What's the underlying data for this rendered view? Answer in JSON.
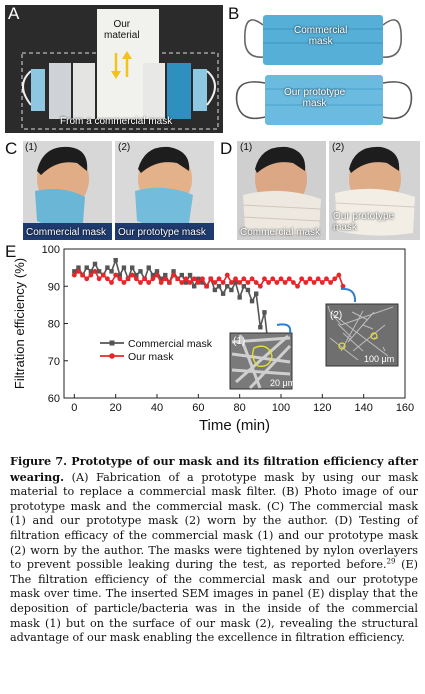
{
  "panel_letters": {
    "a": "A",
    "b": "B",
    "c": "C",
    "d": "D",
    "e": "E"
  },
  "panel_a": {
    "our_material": "Our\nmaterial",
    "from_commercial": "From a commercial mask"
  },
  "panel_b": {
    "commercial_mask": "Commercial\nmask",
    "prototype_mask": "Our prototype\nmask"
  },
  "panel_c": {
    "sub1": "(1)",
    "sub2": "(2)",
    "label1": "Commercial mask",
    "label2": "Our prototype mask"
  },
  "panel_d": {
    "sub1": "(1)",
    "sub2": "(2)",
    "label1": "Commercial mask",
    "label2": "Our prototype\nmask"
  },
  "panel_e": {
    "sem1_label": "(1)",
    "sem1_scale": "20 μm",
    "sem2_label": "(2)",
    "sem2_scale": "100 μm"
  },
  "chart_data": {
    "type": "line",
    "xlabel": "Time (min)",
    "ylabel": "Filtration efficiency (%)",
    "xlim": [
      -5,
      160
    ],
    "ylim": [
      60,
      100
    ],
    "xticks": [
      0,
      20,
      40,
      60,
      80,
      100,
      120,
      140,
      160
    ],
    "yticks": [
      60,
      70,
      80,
      90,
      100
    ],
    "legend_position": "middle-left",
    "series": [
      {
        "name": "Commercial mask",
        "color": "#555555",
        "marker": "square",
        "x": [
          0,
          2,
          4,
          6,
          8,
          10,
          12,
          14,
          16,
          18,
          20,
          22,
          24,
          26,
          28,
          30,
          32,
          34,
          36,
          38,
          40,
          42,
          44,
          46,
          48,
          50,
          52,
          54,
          56,
          58,
          60,
          62,
          64,
          66,
          68,
          70,
          72,
          74,
          76,
          78,
          80,
          82,
          84,
          86,
          88,
          90,
          92,
          94,
          96
        ],
        "y": [
          94,
          95,
          93,
          95,
          94,
          96,
          94,
          93,
          95,
          94,
          97,
          93,
          95,
          92,
          95,
          93,
          94,
          92,
          95,
          93,
          94,
          92,
          93,
          91,
          94,
          92,
          93,
          91,
          93,
          90,
          92,
          91,
          90,
          92,
          89,
          90,
          88,
          90,
          89,
          91,
          87,
          90,
          89,
          86,
          88,
          79,
          83,
          73,
          73
        ]
      },
      {
        "name": "Our mask",
        "color": "#e8262a",
        "marker": "circle",
        "x": [
          0,
          2,
          4,
          6,
          8,
          10,
          12,
          14,
          16,
          18,
          20,
          22,
          24,
          26,
          28,
          30,
          32,
          34,
          36,
          38,
          40,
          42,
          44,
          46,
          48,
          50,
          52,
          54,
          56,
          58,
          60,
          62,
          64,
          66,
          68,
          70,
          72,
          74,
          76,
          78,
          80,
          82,
          84,
          86,
          88,
          90,
          92,
          94,
          96,
          98,
          100,
          102,
          104,
          106,
          108,
          110,
          112,
          114,
          116,
          118,
          120,
          122,
          124,
          126,
          128,
          130
        ],
        "y": [
          93,
          94,
          93,
          92,
          93,
          94,
          92,
          93,
          92,
          91,
          93,
          92,
          91,
          92,
          93,
          92,
          91,
          92,
          91,
          92,
          93,
          91,
          92,
          91,
          93,
          92,
          91,
          92,
          91,
          92,
          91,
          92,
          90,
          92,
          91,
          92,
          91,
          93,
          91,
          92,
          91,
          92,
          91,
          92,
          91,
          90,
          92,
          91,
          92,
          91,
          92,
          91,
          92,
          91,
          90,
          92,
          91,
          92,
          91,
          92,
          91,
          92,
          91,
          92,
          93,
          90
        ]
      }
    ]
  },
  "caption": {
    "title": "Figure 7. Prototype of our mask and its filtration efficiency after wearing.",
    "body_a": " (A) Fabrication of a prototype mask by using our mask material to replace a commercial mask filter. (B) Photo image of our prototype mask and the commercial mask. (C) The commercial mask (1) and our prototype mask (2) worn by the author. (D) Testing of filtration efficacy of the commercial mask (1) and our prototype mask (2) worn by the author. The masks were tightened by nylon overlayers to prevent possible leaking during the test, as reported before.",
    "ref": "29",
    "body_b": " (E) The filtration efficiency of the commercial mask and our prototype mask over time. The inserted SEM images in panel (E) display that the deposition of particle/bacteria was in the inside of the commercial mask (1) but on the surface of our mask (2), revealing the structural advantage of our mask enabling the excellence in filtration efficiency."
  }
}
